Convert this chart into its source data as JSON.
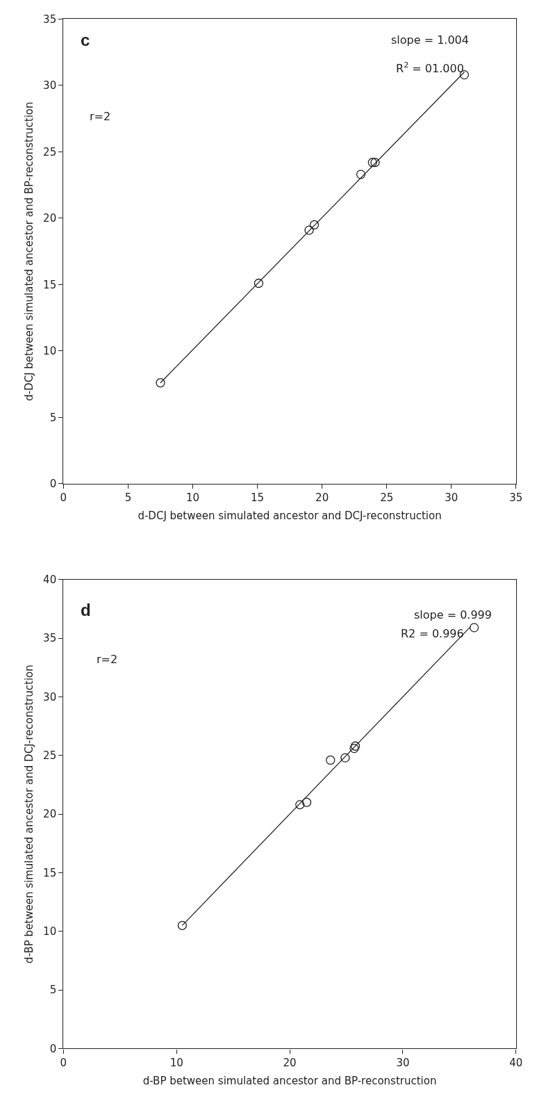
{
  "chart_data": [
    {
      "type": "scatter",
      "xlabel": "d-DCJ between simulated ancestor and DCJ-reconstruction",
      "ylabel": "d-DCJ between simulated ancestor and BP-reconstruction",
      "annotations": [
        "c",
        "slope = 1.004",
        "R$^{2}$ = 01.000",
        "r=2"
      ],
      "xlim": [
        0,
        35
      ],
      "xticks": [
        0,
        5,
        10,
        15,
        20,
        25,
        30,
        35
      ],
      "ylim": [
        0,
        35
      ],
      "yticks": [
        0,
        5,
        10,
        15,
        20,
        25,
        30,
        35
      ],
      "series": [
        {
          "marker": "circle",
          "color": "#222222",
          "x": [
            7.5,
            15.1,
            19.0,
            19.4,
            23.0,
            23.9,
            24.1,
            31.0
          ],
          "values": [
            7.6,
            15.1,
            19.1,
            19.5,
            23.3,
            24.2,
            24.2,
            30.8
          ]
        },
        {
          "type": "line",
          "color": "#222222",
          "x": [
            7.5,
            31.0
          ],
          "values": [
            7.6,
            31.0
          ]
        }
      ]
    },
    {
      "type": "scatter",
      "xlabel": "d-BP between simulated ancestor and BP-reconstruction",
      "ylabel": "d-BP between simulated ancestor and DCJ-reconstruction",
      "annotations": [
        "d",
        "slope = 0.999",
        "R2 = 0.996",
        "r=2"
      ],
      "xlim": [
        0,
        40
      ],
      "xticks": [
        0,
        10,
        20,
        30,
        40
      ],
      "ylim": [
        0,
        40
      ],
      "yticks": [
        0,
        5,
        10,
        15,
        20,
        25,
        30,
        35,
        40
      ],
      "series": [
        {
          "marker": "circle",
          "color": "#222222",
          "x": [
            10.5,
            20.9,
            21.5,
            23.6,
            24.9,
            25.7,
            25.8,
            36.3
          ],
          "values": [
            10.5,
            20.8,
            21.0,
            24.6,
            24.8,
            25.6,
            25.8,
            35.9
          ]
        },
        {
          "type": "line",
          "color": "#222222",
          "x": [
            10.5,
            36.0
          ],
          "values": [
            10.5,
            36.0
          ]
        }
      ]
    }
  ]
}
